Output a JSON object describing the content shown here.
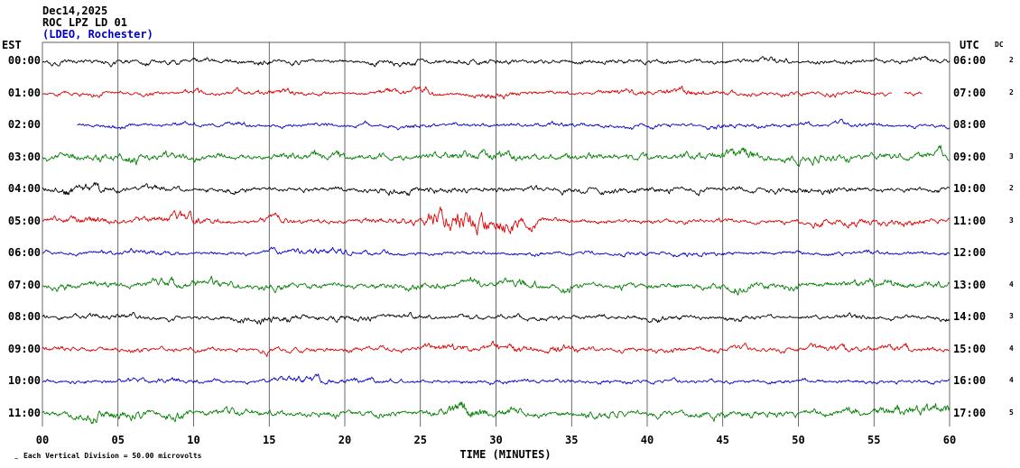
{
  "header": {
    "date": "Dec14,2025",
    "station": "ROC LPZ LD 01",
    "network": "(LDEO, Rochester)",
    "network_color": "#0000cc"
  },
  "axes": {
    "left_label": "EST",
    "right_label": "UTC",
    "dc_label": "DC",
    "x_ticks": [
      "00",
      "05",
      "10",
      "15",
      "20",
      "25",
      "30",
      "35",
      "40",
      "45",
      "50",
      "55",
      "60"
    ],
    "x_title": "TIME (MINUTES)",
    "scale_note": "Each Vertical Division =   50.00 microvolts",
    "corner_mark": "~"
  },
  "chart_data": {
    "type": "line",
    "title": "ROC LPZ LD 01 helicorder, Dec14,2025 (LDEO, Rochester)",
    "xlabel": "TIME (MINUTES)",
    "x_range_minutes": [
      0,
      60
    ],
    "x_tick_interval_minutes": 5,
    "vertical_division_microvolts": 50.0,
    "grid_color": "#2a2a2a",
    "grid_on": true,
    "rows": [
      {
        "est": "00:00",
        "utc": "06:00",
        "dc": "2",
        "color": "#000000",
        "amp": 3.0,
        "segments": [
          [
            0,
            60
          ]
        ],
        "bursts": []
      },
      {
        "est": "01:00",
        "utc": "07:00",
        "dc": "2",
        "color": "#dd0000",
        "amp": 2.8,
        "segments": [
          [
            0,
            56.2
          ],
          [
            57.0,
            58.2
          ]
        ],
        "bursts": []
      },
      {
        "est": "02:00",
        "utc": "08:00",
        "dc": "",
        "color": "#0000cc",
        "amp": 2.5,
        "segments": [
          [
            2.3,
            60
          ]
        ],
        "bursts": []
      },
      {
        "est": "03:00",
        "utc": "09:00",
        "dc": "3",
        "color": "#007f00",
        "amp": 4.3,
        "segments": [
          [
            0,
            60
          ]
        ],
        "bursts": [
          {
            "c": 4,
            "w": 2.5,
            "a": 2
          }
        ]
      },
      {
        "est": "04:00",
        "utc": "10:00",
        "dc": "2",
        "color": "#000000",
        "amp": 3.3,
        "segments": [
          [
            0,
            60
          ]
        ],
        "bursts": [
          {
            "c": 2.5,
            "w": 1.5,
            "a": 3
          }
        ]
      },
      {
        "est": "05:00",
        "utc": "11:00",
        "dc": "3",
        "color": "#dd0000",
        "amp": 3.3,
        "segments": [
          [
            0,
            60
          ]
        ],
        "bursts": [
          {
            "c": 27.3,
            "w": 1.6,
            "a": 9
          },
          {
            "c": 30.5,
            "w": 1.5,
            "a": 3.5
          }
        ]
      },
      {
        "est": "06:00",
        "utc": "12:00",
        "dc": "",
        "color": "#0000cc",
        "amp": 2.6,
        "segments": [
          [
            0,
            60
          ]
        ],
        "bursts": []
      },
      {
        "est": "07:00",
        "utc": "13:00",
        "dc": "4",
        "color": "#007f00",
        "amp": 4.0,
        "segments": [
          [
            0,
            60
          ]
        ],
        "bursts": []
      },
      {
        "est": "08:00",
        "utc": "14:00",
        "dc": "3",
        "color": "#000000",
        "amp": 3.1,
        "segments": [
          [
            0,
            60
          ]
        ],
        "bursts": []
      },
      {
        "est": "09:00",
        "utc": "15:00",
        "dc": "4",
        "color": "#dd0000",
        "amp": 3.2,
        "segments": [
          [
            0,
            60
          ]
        ],
        "bursts": [
          {
            "c": 34.5,
            "w": 0.8,
            "a": 3
          }
        ]
      },
      {
        "est": "10:00",
        "utc": "16:00",
        "dc": "4",
        "color": "#0000cc",
        "amp": 2.8,
        "segments": [
          [
            0,
            60
          ]
        ],
        "bursts": []
      },
      {
        "est": "11:00",
        "utc": "17:00",
        "dc": "5",
        "color": "#007f00",
        "amp": 4.2,
        "segments": [
          [
            0,
            60
          ]
        ],
        "bursts": [
          {
            "c": 28,
            "w": 1.5,
            "a": 2.5
          }
        ]
      }
    ]
  }
}
